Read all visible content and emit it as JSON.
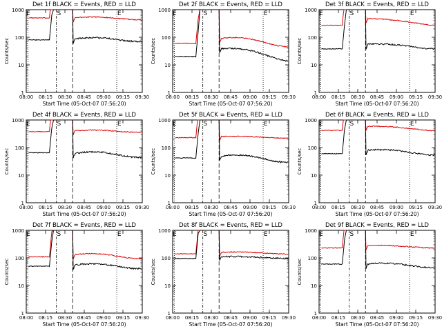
{
  "colors": {
    "events": "#000000",
    "lld": "#dd0000",
    "background": "#ffffff"
  },
  "chart_data": [
    {
      "type": "line",
      "title": "Det 1f BLACK = Events, RED = LLD",
      "xlabel": "Start Time (05-Oct-07 07:56:20)",
      "ylabel": "Counts/sec",
      "yscale": "log",
      "ylim": [
        1,
        1000
      ],
      "ytick_labels": [
        "1",
        "10",
        "100",
        "1000"
      ],
      "xtick_labels": [
        "08:00",
        "08:15",
        "08:30",
        "08:45",
        "09:00",
        "09:15",
        "09:30"
      ],
      "markers": {
        "E1": "E",
        "S": "S",
        "E2": "E"
      },
      "series": [
        {
          "style": "red",
          "pre": 500,
          "post": 500,
          "post_end": 480,
          "bump": 0.1
        },
        {
          "style": "black",
          "pre": 80,
          "post": 85,
          "post_end": 82,
          "bump": 0.15
        }
      ]
    },
    {
      "type": "line",
      "title": "Det 2f BLACK = Events, RED = LLD",
      "xlabel": "Start Time (05-Oct-07 07:56:20)",
      "ylabel": "Counts/sec",
      "yscale": "log",
      "ylim": [
        1,
        1000
      ],
      "ytick_labels": [
        "1",
        "10",
        "100",
        "1000"
      ],
      "xtick_labels": [
        "08:00",
        "08:15",
        "08:30",
        "08:45",
        "09:00",
        "09:15",
        "09:30"
      ],
      "markers": {
        "E1": "E",
        "S": "S",
        "E2": "E"
      },
      "series": [
        {
          "style": "red",
          "pre": 60,
          "post": 90,
          "post_end": 55,
          "bump": 0.2
        },
        {
          "style": "black",
          "pre": 20,
          "post": 38,
          "post_end": 17,
          "bump": 0.2
        }
      ]
    },
    {
      "type": "line",
      "title": "Det 3f BLACK = Events, RED = LLD",
      "xlabel": "Start Time (05-Oct-07 07:56:20)",
      "ylabel": "Counts/sec",
      "yscale": "log",
      "ylim": [
        1,
        1000
      ],
      "ytick_labels": [
        "1",
        "10",
        "100",
        "1000"
      ],
      "xtick_labels": [
        "08:00",
        "08:15",
        "08:30",
        "08:45",
        "09:00",
        "09:15",
        "09:30"
      ],
      "markers": {
        "E1": "E",
        "S": "S",
        "E2": "E"
      },
      "series": [
        {
          "style": "red",
          "pre": 270,
          "post": 480,
          "post_end": 280,
          "bump": 0.05
        },
        {
          "style": "black",
          "pre": 38,
          "post": 55,
          "post_end": 42,
          "bump": 0.1
        }
      ]
    },
    {
      "type": "line",
      "title": "Det 4f BLACK = Events, RED = LLD",
      "xlabel": "Start Time (05-Oct-07 07:56:20)",
      "ylabel": "Counts/sec",
      "yscale": "log",
      "ylim": [
        1,
        1000
      ],
      "ytick_labels": [
        "1",
        "10",
        "100",
        "1000"
      ],
      "xtick_labels": [
        "08:00",
        "08:15",
        "08:30",
        "08:45",
        "09:00",
        "09:15",
        "09:30"
      ],
      "markers": {
        "E1": "E",
        "S": "S",
        "E2": "E"
      },
      "series": [
        {
          "style": "red",
          "pre": 380,
          "post": 400,
          "post_end": 390,
          "bump": 0.08
        },
        {
          "style": "black",
          "pre": 65,
          "post": 60,
          "post_end": 55,
          "bump": 0.2
        }
      ]
    },
    {
      "type": "line",
      "title": "Det 5f BLACK = Events, RED = LLD",
      "xlabel": "Start Time (05-Oct-07 07:56:20)",
      "ylabel": "Counts/sec",
      "yscale": "log",
      "ylim": [
        1,
        1000
      ],
      "ytick_labels": [
        "1",
        "10",
        "100",
        "1000"
      ],
      "xtick_labels": [
        "08:00",
        "08:15",
        "08:30",
        "08:45",
        "09:00",
        "09:15",
        "09:30"
      ],
      "markers": {
        "E1": "E",
        "S": "S",
        "E2": "E"
      },
      "series": [
        {
          "style": "red",
          "pre": 230,
          "post": 250,
          "post_end": 230,
          "bump": 0.05
        },
        {
          "style": "black",
          "pre": 42,
          "post": 48,
          "post_end": 36,
          "bump": 0.2
        }
      ]
    },
    {
      "type": "line",
      "title": "Det 6f BLACK = Events, RED = LLD",
      "xlabel": "Start Time (05-Oct-07 07:56:20)",
      "ylabel": "Counts/sec",
      "yscale": "log",
      "ylim": [
        1,
        1000
      ],
      "ytick_labels": [
        "1",
        "10",
        "100",
        "1000"
      ],
      "xtick_labels": [
        "08:00",
        "08:15",
        "08:30",
        "08:45",
        "09:00",
        "09:15",
        "09:30"
      ],
      "markers": {
        "E1": "E",
        "S": "S",
        "E2": "E"
      },
      "series": [
        {
          "style": "red",
          "pre": 420,
          "post": 600,
          "post_end": 430,
          "bump": 0.05
        },
        {
          "style": "black",
          "pre": 60,
          "post": 80,
          "post_end": 60,
          "bump": 0.12
        }
      ]
    },
    {
      "type": "line",
      "title": "Det 7f BLACK = Events, RED = LLD",
      "xlabel": "Start Time (05-Oct-07 07:56:20)",
      "ylabel": "Counts/sec",
      "yscale": "log",
      "ylim": [
        1,
        1000
      ],
      "ytick_labels": [
        "1",
        "10",
        "100",
        "1000"
      ],
      "xtick_labels": [
        "08:00",
        "08:15",
        "08:30",
        "08:45",
        "09:00",
        "09:15",
        "09:30"
      ],
      "markers": {
        "E1": "E",
        "S": "S",
        "E2": "E"
      },
      "series": [
        {
          "style": "red",
          "pre": 110,
          "post": 130,
          "post_end": 110,
          "bump": 0.15
        },
        {
          "style": "black",
          "pre": 50,
          "post": 55,
          "post_end": 48,
          "bump": 0.15
        }
      ]
    },
    {
      "type": "line",
      "title": "Det 8f BLACK = Events, RED = LLD",
      "xlabel": "Start Time (05-Oct-07 07:56:20)",
      "ylabel": "Counts/sec",
      "yscale": "log",
      "ylim": [
        1,
        1000
      ],
      "ytick_labels": [
        "1",
        "10",
        "100",
        "1000"
      ],
      "xtick_labels": [
        "08:00",
        "08:15",
        "08:30",
        "08:45",
        "09:00",
        "09:15",
        "09:30"
      ],
      "markers": {
        "E1": "E",
        "S": "S",
        "E2": "E"
      },
      "series": [
        {
          "style": "red",
          "pre": 140,
          "post": 160,
          "post_end": 145,
          "bump": 0.05
        },
        {
          "style": "black",
          "pre": 95,
          "post": 110,
          "post_end": 100,
          "bump": 0.05
        }
      ]
    },
    {
      "type": "line",
      "title": "Det 9f BLACK = Events, RED = LLD",
      "xlabel": "Start Time (05-Oct-07 07:56:20)",
      "ylabel": "Counts/sec",
      "yscale": "log",
      "ylim": [
        1,
        1000
      ],
      "ytick_labels": [
        "1",
        "10",
        "100",
        "1000"
      ],
      "xtick_labels": [
        "08:00",
        "08:15",
        "08:30",
        "08:45",
        "09:00",
        "09:15",
        "09:30"
      ],
      "markers": {
        "E1": "E",
        "S": "S",
        "E2": "E"
      },
      "series": [
        {
          "style": "red",
          "pre": 230,
          "post": 280,
          "post_end": 240,
          "bump": 0.05
        },
        {
          "style": "black",
          "pre": 60,
          "post": 60,
          "post_end": 50,
          "bump": 0.12
        }
      ]
    }
  ]
}
